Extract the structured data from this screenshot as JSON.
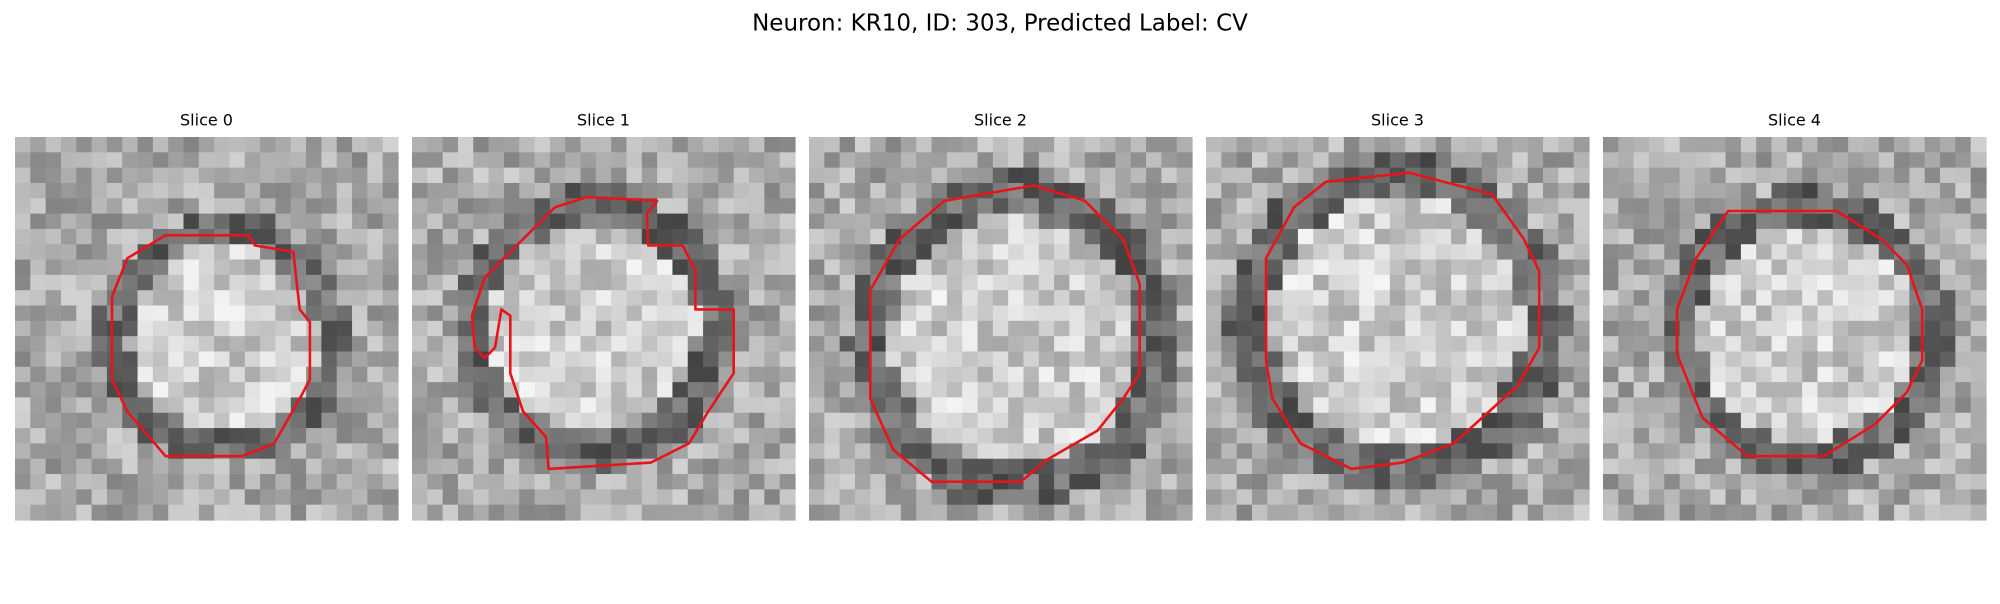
{
  "title": "Neuron: KR10, ID: 303, Predicted Label: CV",
  "panels": [
    {
      "title": "Slice 0"
    },
    {
      "title": "Slice 1"
    },
    {
      "title": "Slice 2"
    },
    {
      "title": "Slice 3"
    },
    {
      "title": "Slice 4"
    }
  ]
}
